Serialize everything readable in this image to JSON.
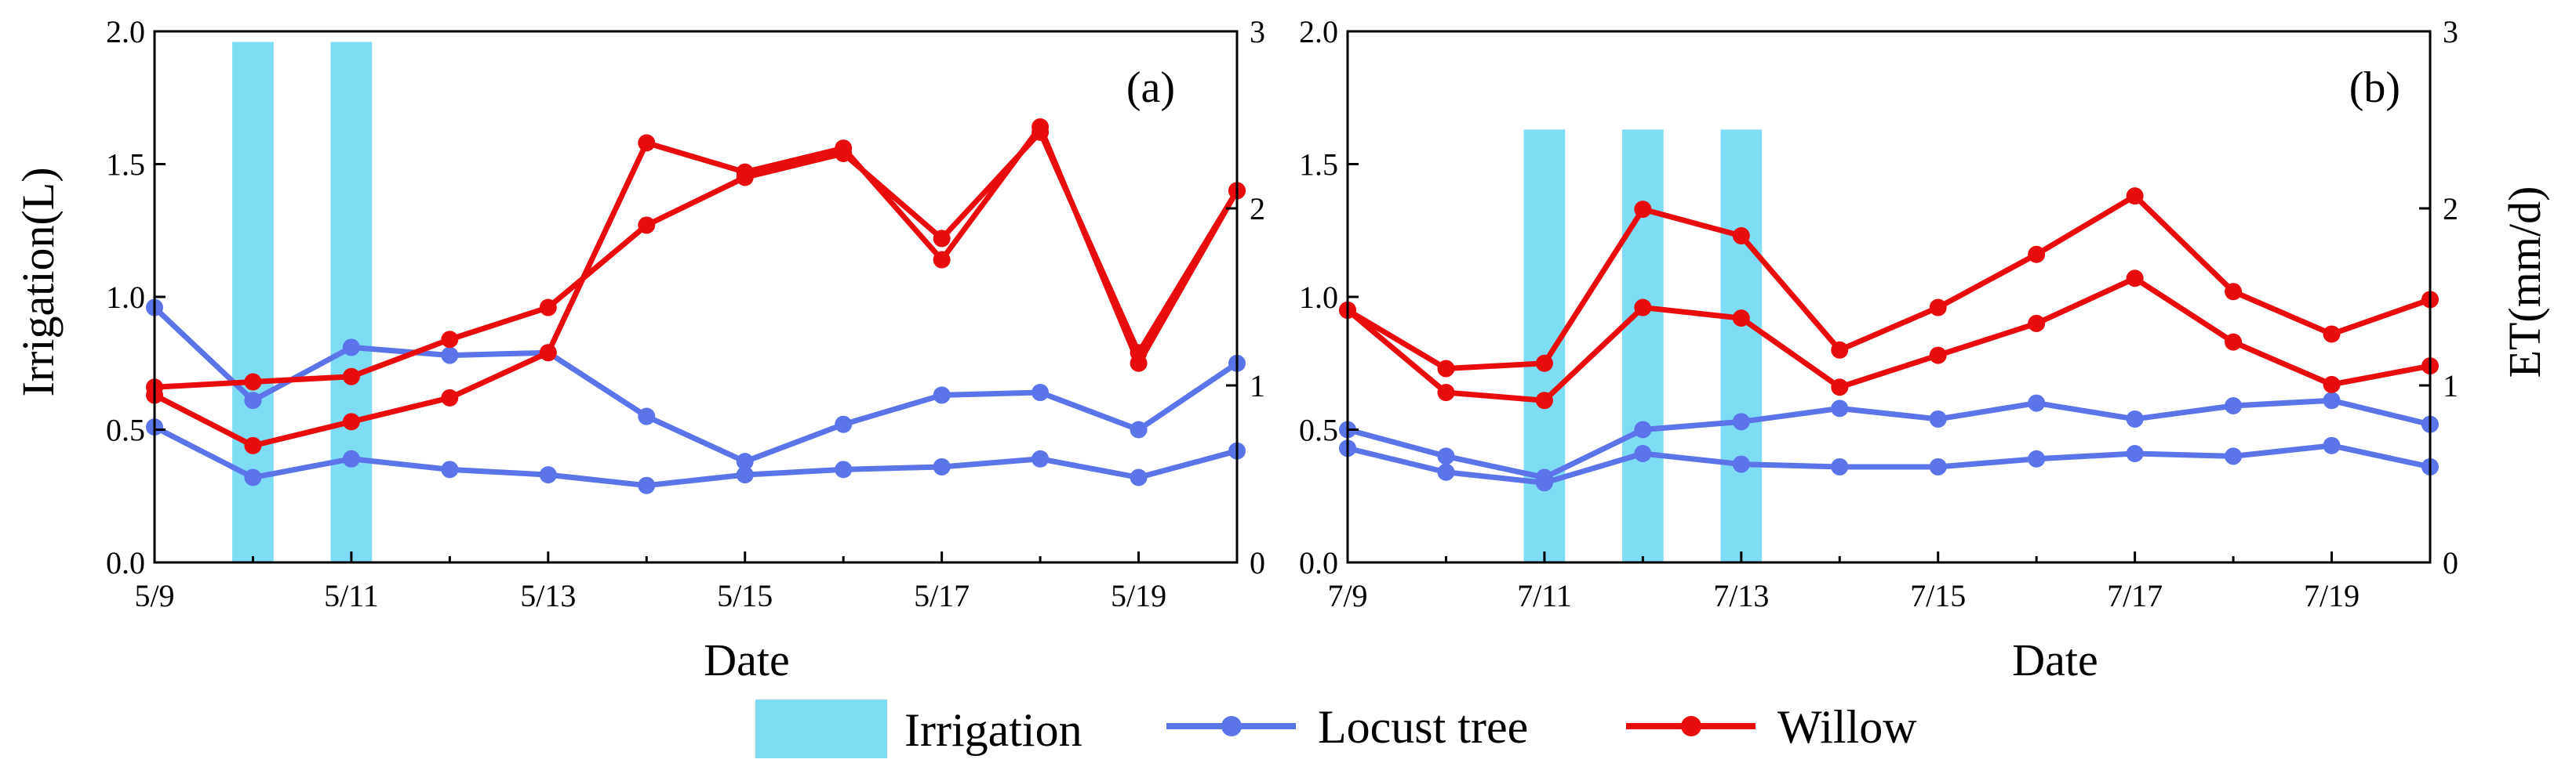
{
  "colors": {
    "irrigation": "#7fdcf5",
    "locust": "#5b74e8",
    "willow": "#e80c0c",
    "axis": "#000000"
  },
  "legend": {
    "irrigation": "Irrigation",
    "locust": "Locust tree",
    "willow": "Willow"
  },
  "chart_data": [
    {
      "type": "line",
      "panel_label": "(a)",
      "xlabel": "Date",
      "ylabel_left": "Irrigation(L)",
      "ylabel_right": "",
      "x_tick_labels": [
        "5/9",
        "5/11",
        "5/13",
        "5/15",
        "5/17",
        "5/19"
      ],
      "x_range": [
        0,
        11
      ],
      "y_left_range": [
        0,
        2.0
      ],
      "y_left_ticks": [
        "0.0",
        "0.5",
        "1.0",
        "1.5",
        "2.0"
      ],
      "y_right_range": [
        0,
        3
      ],
      "y_right_ticks": [
        "0",
        "1",
        "2",
        "3"
      ],
      "irrigation": [
        {
          "x": 1,
          "value": 1.96
        },
        {
          "x": 2,
          "value": 1.96
        }
      ],
      "series": [
        {
          "name": "Locust tree",
          "color_key": "locust",
          "x": [
            0,
            1,
            2,
            3,
            4,
            5,
            6,
            7,
            8,
            9,
            10,
            11
          ],
          "values": [
            0.96,
            0.61,
            0.81,
            0.78,
            0.79,
            0.55,
            0.38,
            0.52,
            0.63,
            0.64,
            0.5,
            0.75
          ]
        },
        {
          "name": "Locust tree",
          "color_key": "locust",
          "x": [
            0,
            1,
            2,
            3,
            4,
            5,
            6,
            7,
            8,
            9,
            10,
            11
          ],
          "values": [
            0.51,
            0.32,
            0.39,
            0.35,
            0.33,
            0.29,
            0.33,
            0.35,
            0.36,
            0.39,
            0.32,
            0.42
          ]
        },
        {
          "name": "Willow",
          "color_key": "willow",
          "x": [
            0,
            1,
            2,
            3,
            4,
            5,
            6,
            7,
            8,
            9,
            10,
            11
          ],
          "values": [
            0.66,
            0.68,
            0.7,
            0.84,
            0.96,
            1.27,
            1.45,
            1.54,
            1.22,
            1.62,
            0.79,
            1.4
          ]
        },
        {
          "name": "Willow",
          "color_key": "willow",
          "x": [
            0,
            1,
            2,
            3,
            4,
            5,
            6,
            7,
            8,
            9,
            10,
            11
          ],
          "values": [
            0.63,
            0.44,
            0.53,
            0.62,
            0.79,
            1.58,
            1.47,
            1.56,
            1.14,
            1.64,
            0.75,
            1.4
          ]
        }
      ]
    },
    {
      "type": "line",
      "panel_label": "(b)",
      "xlabel": "Date",
      "ylabel_left": "",
      "ylabel_right": "ET(mm/d)",
      "x_tick_labels": [
        "7/9",
        "7/11",
        "7/13",
        "7/15",
        "7/17",
        "7/19"
      ],
      "x_range": [
        0,
        11
      ],
      "y_left_range": [
        0,
        2.0
      ],
      "y_left_ticks": [
        "0.0",
        "0.5",
        "1.0",
        "1.5",
        "2.0"
      ],
      "y_right_range": [
        0,
        3
      ],
      "y_right_ticks": [
        "0",
        "1",
        "2",
        "3"
      ],
      "irrigation": [
        {
          "x": 2,
          "value": 1.63
        },
        {
          "x": 3,
          "value": 1.63
        },
        {
          "x": 4,
          "value": 1.63
        }
      ],
      "series": [
        {
          "name": "Locust tree",
          "color_key": "locust",
          "x": [
            0,
            1,
            2,
            3,
            4,
            5,
            6,
            7,
            8,
            9,
            10,
            11
          ],
          "values": [
            0.5,
            0.4,
            0.32,
            0.5,
            0.53,
            0.58,
            0.54,
            0.6,
            0.54,
            0.59,
            0.61,
            0.52
          ]
        },
        {
          "name": "Locust tree",
          "color_key": "locust",
          "x": [
            0,
            1,
            2,
            3,
            4,
            5,
            6,
            7,
            8,
            9,
            10,
            11
          ],
          "values": [
            0.43,
            0.34,
            0.3,
            0.41,
            0.37,
            0.36,
            0.36,
            0.39,
            0.41,
            0.4,
            0.44,
            0.36
          ]
        },
        {
          "name": "Willow",
          "color_key": "willow",
          "x": [
            0,
            1,
            2,
            3,
            4,
            5,
            6,
            7,
            8,
            9,
            10,
            11
          ],
          "values": [
            0.95,
            0.73,
            0.75,
            1.33,
            1.23,
            0.8,
            0.96,
            1.16,
            1.38,
            1.02,
            0.86,
            0.99
          ]
        },
        {
          "name": "Willow",
          "color_key": "willow",
          "x": [
            0,
            1,
            2,
            3,
            4,
            5,
            6,
            7,
            8,
            9,
            10,
            11
          ],
          "values": [
            0.95,
            0.64,
            0.61,
            0.96,
            0.92,
            0.66,
            0.78,
            0.9,
            1.07,
            0.83,
            0.67,
            0.74
          ]
        }
      ]
    }
  ]
}
